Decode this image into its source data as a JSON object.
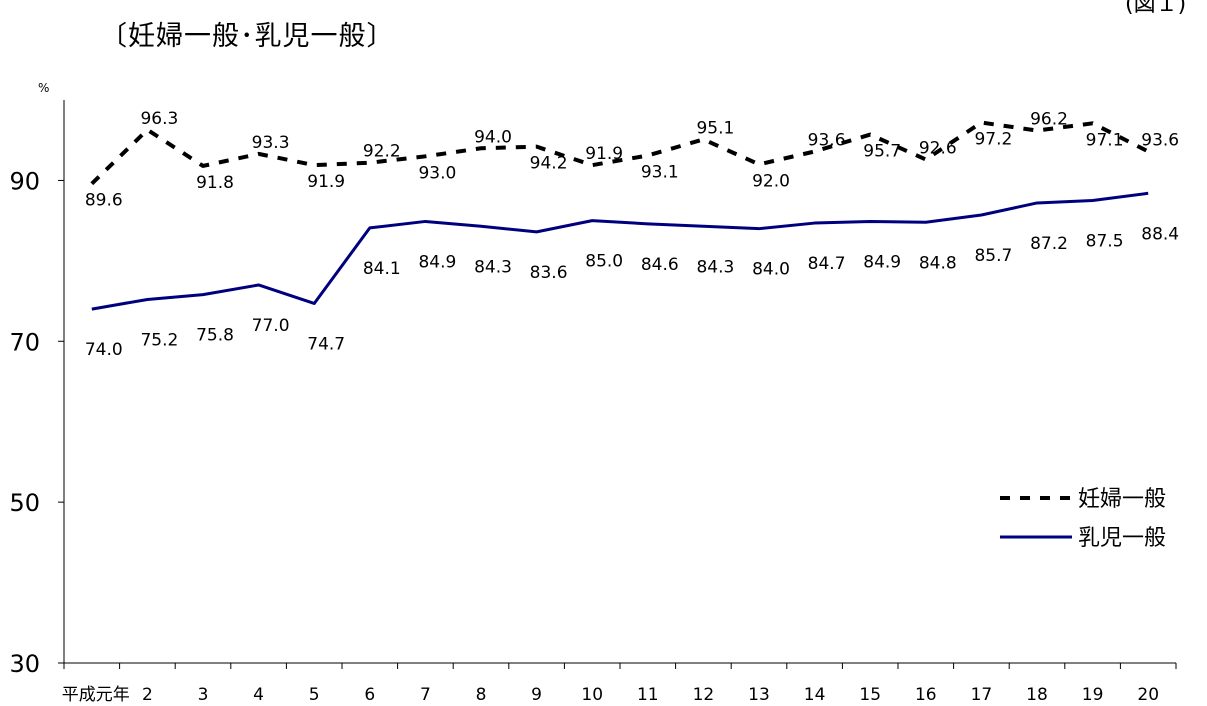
{
  "title": "〔妊婦一般･乳児一般〕",
  "corner_label": "(図１)",
  "chart_data": {
    "type": "line",
    "title": "〔妊婦一般･乳児一般〕",
    "ylabel": "%",
    "xlabel": "",
    "ylim": [
      30,
      100
    ],
    "yticks": [
      30,
      50,
      70,
      90
    ],
    "categories": [
      "平成元年",
      "2",
      "3",
      "4",
      "5",
      "6",
      "7",
      "8",
      "9",
      "10",
      "11",
      "12",
      "13",
      "14",
      "15",
      "16",
      "17",
      "18",
      "19",
      "20"
    ],
    "series": [
      {
        "name": "妊婦一般",
        "style": "dashed",
        "color": "#000000",
        "values": [
          89.6,
          96.3,
          91.8,
          93.3,
          91.9,
          92.2,
          93.0,
          94.0,
          94.2,
          91.9,
          93.1,
          95.1,
          92.0,
          93.6,
          95.7,
          92.6,
          97.2,
          96.2,
          97.1,
          93.6
        ]
      },
      {
        "name": "乳児一般",
        "style": "solid",
        "color": "#00007f",
        "values": [
          74.0,
          75.2,
          75.8,
          77.0,
          74.7,
          84.1,
          84.9,
          84.3,
          83.6,
          85.0,
          84.6,
          84.3,
          84.0,
          84.7,
          84.9,
          84.8,
          85.7,
          87.2,
          87.5,
          88.4
        ]
      }
    ],
    "legend_position": "right"
  }
}
